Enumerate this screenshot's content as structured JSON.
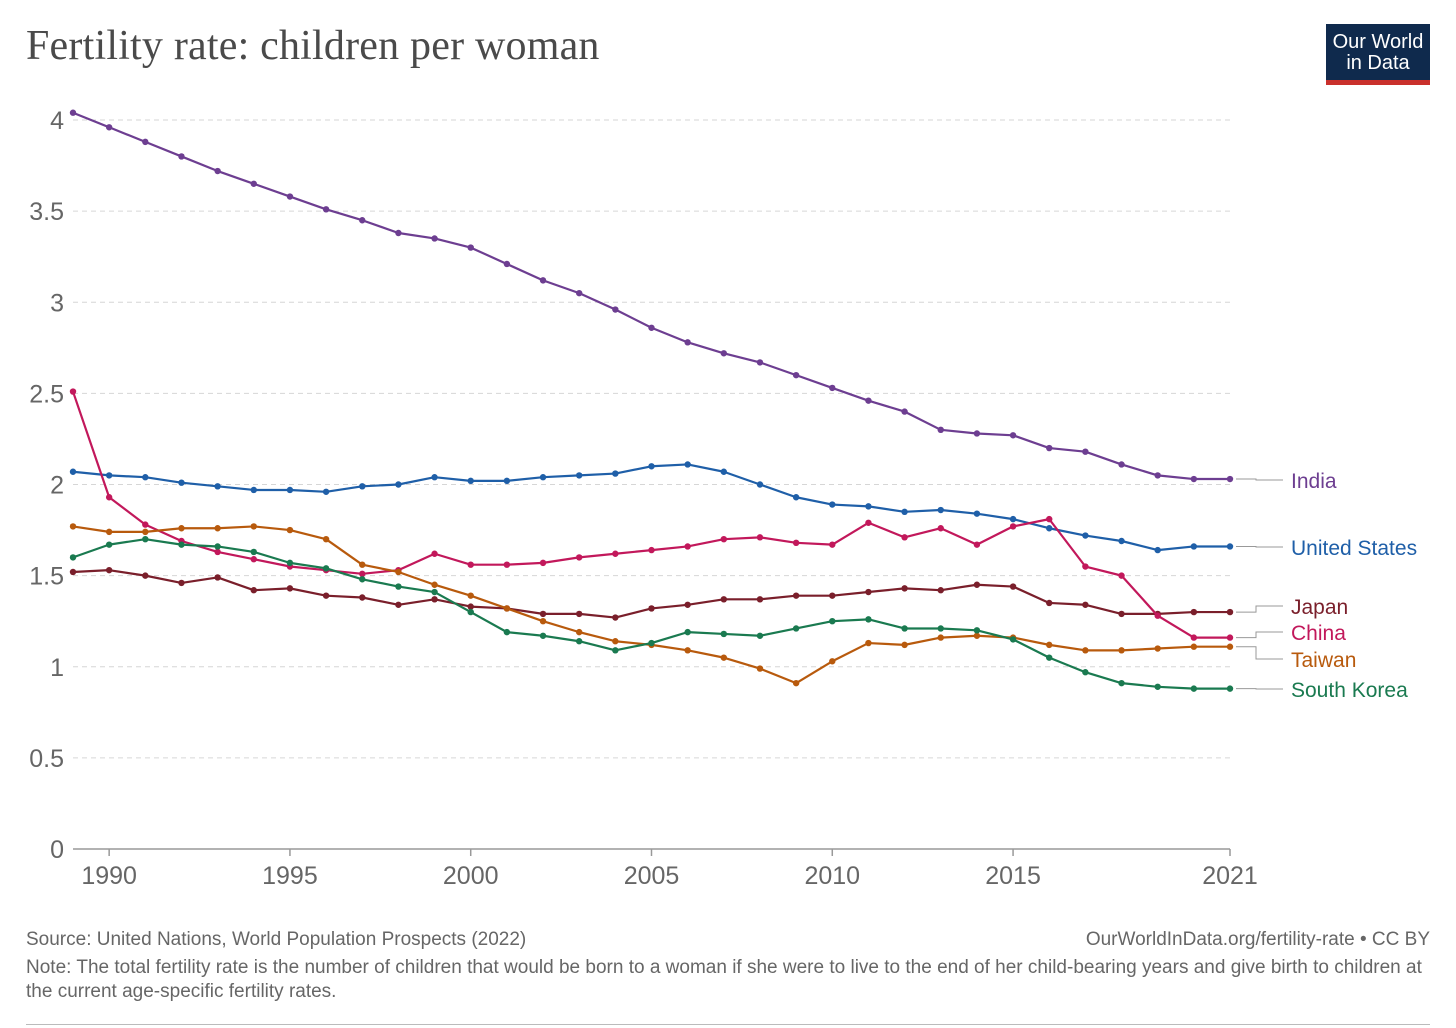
{
  "title": "Fertility rate: children per woman",
  "logo": {
    "line1": "Our World",
    "line2": "in Data"
  },
  "footer": {
    "source": "Source: United Nations, World Population Prospects (2022)",
    "license": "OurWorldInData.org/fertility-rate • CC BY",
    "note": "Note: The total fertility rate is the number of children that would be born to a woman if she were to live to the end of her child-bearing years and give birth to children at the current age-specific fertility rates."
  },
  "chart_data": {
    "type": "line",
    "title": "Fertility rate: children per woman",
    "xlabel": "",
    "ylabel": "",
    "xlim": [
      1989,
      2021
    ],
    "ylim": [
      0,
      4
    ],
    "xticks": [
      {
        "value": 1990,
        "label": "1990"
      },
      {
        "value": 1995,
        "label": "1995"
      },
      {
        "value": 2000,
        "label": "2000"
      },
      {
        "value": 2005,
        "label": "2005"
      },
      {
        "value": 2010,
        "label": "2010"
      },
      {
        "value": 2015,
        "label": "2015"
      },
      {
        "value": 2021,
        "label": "2021"
      }
    ],
    "yticks": [
      {
        "value": 0,
        "label": "0"
      },
      {
        "value": 0.5,
        "label": "0.5"
      },
      {
        "value": 1,
        "label": "1"
      },
      {
        "value": 1.5,
        "label": "1.5"
      },
      {
        "value": 2,
        "label": "2"
      },
      {
        "value": 2.5,
        "label": "2.5"
      },
      {
        "value": 3,
        "label": "3"
      },
      {
        "value": 3.5,
        "label": "3.5"
      },
      {
        "value": 4,
        "label": "4"
      }
    ],
    "grid": "horizontal dashed",
    "legend": "right (inline labels at line ends)",
    "x": [
      1989,
      1990,
      1991,
      1992,
      1993,
      1994,
      1995,
      1996,
      1997,
      1998,
      1999,
      2000,
      2001,
      2002,
      2003,
      2004,
      2005,
      2006,
      2007,
      2008,
      2009,
      2010,
      2011,
      2012,
      2013,
      2014,
      2015,
      2016,
      2017,
      2018,
      2019,
      2020,
      2021
    ],
    "series": [
      {
        "name": "India",
        "color": "#6d3e91",
        "label_value": 2.03,
        "values": [
          4.04,
          3.96,
          3.88,
          3.8,
          3.72,
          3.65,
          3.58,
          3.51,
          3.45,
          3.38,
          3.35,
          3.3,
          3.21,
          3.12,
          3.05,
          2.96,
          2.86,
          2.78,
          2.72,
          2.67,
          2.6,
          2.53,
          2.46,
          2.4,
          2.3,
          2.28,
          2.27,
          2.2,
          2.18,
          2.11,
          2.05,
          2.03,
          2.03
        ]
      },
      {
        "name": "United States",
        "color": "#1f5fa8",
        "label_value": 1.66,
        "values": [
          2.07,
          2.05,
          2.04,
          2.01,
          1.99,
          1.97,
          1.97,
          1.96,
          1.99,
          2.0,
          2.04,
          2.02,
          2.02,
          2.04,
          2.05,
          2.06,
          2.1,
          2.11,
          2.07,
          2.0,
          1.93,
          1.89,
          1.88,
          1.85,
          1.86,
          1.84,
          1.81,
          1.76,
          1.72,
          1.69,
          1.64,
          1.66,
          1.66
        ]
      },
      {
        "name": "Japan",
        "color": "#7a1f2b",
        "label_value": 1.3,
        "values": [
          1.52,
          1.53,
          1.5,
          1.46,
          1.49,
          1.42,
          1.43,
          1.39,
          1.38,
          1.34,
          1.37,
          1.33,
          1.32,
          1.29,
          1.29,
          1.27,
          1.32,
          1.34,
          1.37,
          1.37,
          1.39,
          1.39,
          1.41,
          1.43,
          1.42,
          1.45,
          1.44,
          1.35,
          1.34,
          1.29,
          1.29,
          1.3,
          1.3
        ]
      },
      {
        "name": "China",
        "color": "#c2185b",
        "label_value": 1.16,
        "values": [
          2.51,
          1.93,
          1.78,
          1.69,
          1.63,
          1.59,
          1.55,
          1.53,
          1.51,
          1.53,
          1.62,
          1.56,
          1.56,
          1.57,
          1.6,
          1.62,
          1.64,
          1.66,
          1.7,
          1.71,
          1.68,
          1.67,
          1.79,
          1.71,
          1.76,
          1.67,
          1.77,
          1.81,
          1.55,
          1.5,
          1.28,
          1.16,
          1.16
        ]
      },
      {
        "name": "Taiwan",
        "color": "#b85a0d",
        "label_value": 1.11,
        "values": [
          1.77,
          1.74,
          1.74,
          1.76,
          1.76,
          1.77,
          1.75,
          1.7,
          1.56,
          1.52,
          1.45,
          1.39,
          1.32,
          1.25,
          1.19,
          1.14,
          1.12,
          1.09,
          1.05,
          0.99,
          0.91,
          1.03,
          1.13,
          1.12,
          1.16,
          1.17,
          1.16,
          1.12,
          1.09,
          1.09,
          1.1,
          1.11,
          1.11
        ]
      },
      {
        "name": "South Korea",
        "color": "#1a7a50",
        "label_value": 0.88,
        "values": [
          1.6,
          1.67,
          1.7,
          1.67,
          1.66,
          1.63,
          1.57,
          1.54,
          1.48,
          1.44,
          1.41,
          1.3,
          1.19,
          1.17,
          1.14,
          1.09,
          1.13,
          1.19,
          1.18,
          1.17,
          1.21,
          1.25,
          1.26,
          1.21,
          1.21,
          1.2,
          1.15,
          1.05,
          0.97,
          0.91,
          0.89,
          0.88,
          0.88
        ]
      }
    ]
  }
}
